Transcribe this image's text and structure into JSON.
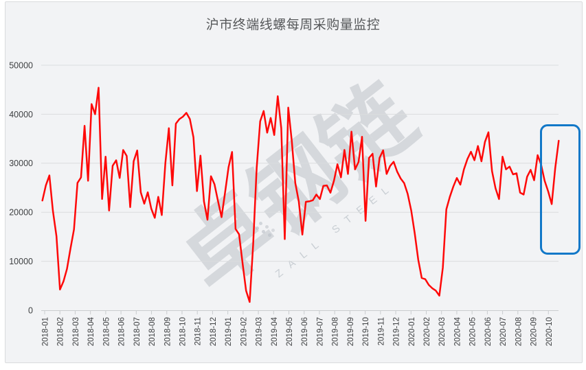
{
  "chart": {
    "title": "沪市终端线螺每周采购量监控"
  },
  "watermark": {
    "brand_cn": "卓钢链",
    "brand_en": "ZALL STEEL"
  },
  "style": {
    "line_color": "#fe0808",
    "grid_color": "#dadcde",
    "axis_color": "#c9ccce",
    "label_color": "#3e4042",
    "title_color": "#56585a",
    "highlight_color": "#1278c8",
    "panel_bg": "#f2f3f5"
  },
  "chart_data": {
    "type": "line",
    "title": "沪市终端线螺每周采购量监控",
    "grid": "horizontal",
    "legend": "none",
    "x_axis": {
      "tick_rotation": -90,
      "tick_labels": [
        "2018-01",
        "2018-02",
        "2018-03",
        "2018-04",
        "2018-05",
        "2018-06",
        "2018-07",
        "2018-08",
        "2018-09",
        "2018-10",
        "2018-11",
        "2018-12",
        "2019-01",
        "2019-02",
        "2019-03",
        "2019-04",
        "2019-05",
        "2019-06",
        "2019-07",
        "2019-08",
        "2019-09",
        "2019-10",
        "2019-11",
        "2019-12",
        "2020-01",
        "2020-02",
        "2020-03",
        "2020-04",
        "2020-05",
        "2020-06",
        "2020-07",
        "2020-08",
        "2020-09",
        "2020-10"
      ]
    },
    "y_axis": {
      "min": 0,
      "max": 50000,
      "ticks": [
        0,
        10000,
        20000,
        30000,
        40000,
        50000
      ]
    },
    "series": [
      {
        "name": "每周采购量",
        "frequency": "weekly",
        "color": "#fe0808",
        "values": [
          22400,
          25500,
          27500,
          20300,
          15100,
          4250,
          5900,
          8450,
          12600,
          16500,
          26000,
          27100,
          37630,
          26430,
          42070,
          40000,
          45400,
          22700,
          31350,
          20350,
          29500,
          30600,
          27000,
          32700,
          31500,
          21050,
          30400,
          32600,
          24080,
          21750,
          24080,
          20730,
          18860,
          23150,
          19420,
          30000,
          37160,
          25480,
          38080,
          39000,
          39500,
          40280,
          39000,
          35300,
          24320,
          31560,
          22200,
          18480,
          27350,
          25720,
          22300,
          19000,
          24000,
          29200,
          32300,
          16600,
          15500,
          9600,
          4000,
          1700,
          13400,
          29000,
          38550,
          40660,
          36230,
          39240,
          35760,
          43690,
          37160,
          14520,
          41360,
          34590,
          26000,
          22220,
          15450,
          22130,
          22220,
          22450,
          23620,
          22690,
          25390,
          25480,
          23990,
          26420,
          29790,
          27120,
          32720,
          27820,
          36460,
          28750,
          30250,
          35390,
          18250,
          31090,
          31930,
          25250,
          31090,
          32630,
          27820,
          29450,
          30290,
          28290,
          26890,
          25950,
          23760,
          20350,
          15690,
          10320,
          6580,
          6350,
          5180,
          4500,
          4020,
          2990,
          8680,
          20590,
          23150,
          25250,
          26990,
          25630,
          28750,
          30850,
          32350,
          30620,
          33520,
          30390,
          34360,
          36320,
          28390,
          24890,
          22690,
          31330,
          28750,
          29310,
          27730,
          27960,
          23990,
          23620,
          27260,
          28660,
          26520,
          31650,
          29690,
          26420,
          24230,
          21660,
          29000,
          34600
        ]
      }
    ],
    "annotations": [
      {
        "type": "highlight-box",
        "color": "#1278c8",
        "x_from_label": "2020-09",
        "x_to_label": "2020-10",
        "note": "rectangle highlighting the most recent weeks"
      }
    ]
  }
}
